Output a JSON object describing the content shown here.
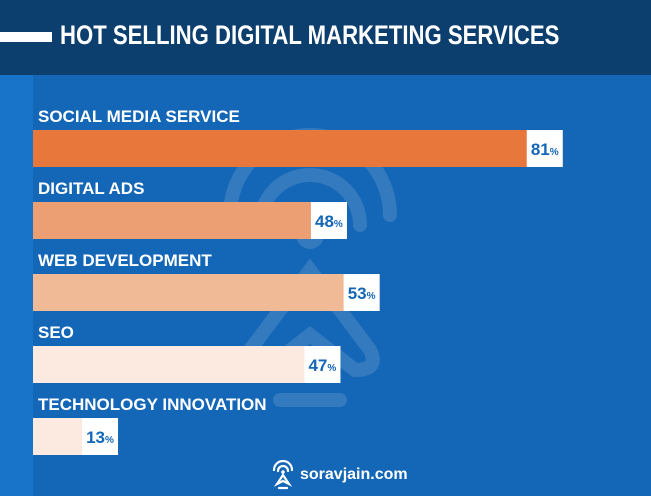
{
  "header": {
    "title": "HOT SELLING DIGITAL MARKETING SERVICES"
  },
  "footer": {
    "brand": "soravjain.com"
  },
  "colors": {
    "background": "#1466b6",
    "header": "#0d3f6e",
    "bar_1": "#e8773c",
    "bar_2": "#ec9f72",
    "bar_3": "#f0ba97",
    "bar_4": "#fce9df",
    "bar_5": "#fce9df",
    "value_text": "#1466b6"
  },
  "chart_data": {
    "type": "bar",
    "orientation": "horizontal",
    "title": "HOT SELLING DIGITAL MARKETING SERVICES",
    "categories": [
      "SOCIAL MEDIA SERVICE",
      "DIGITAL ADS",
      "WEB DEVELOPMENT",
      "SEO",
      "TECHNOLOGY INNOVATION"
    ],
    "values": [
      81,
      48,
      53,
      47,
      13
    ],
    "unit": "%",
    "data_labels": [
      "81",
      "48",
      "53",
      "47",
      "13"
    ],
    "grid": false,
    "legend": "none"
  }
}
